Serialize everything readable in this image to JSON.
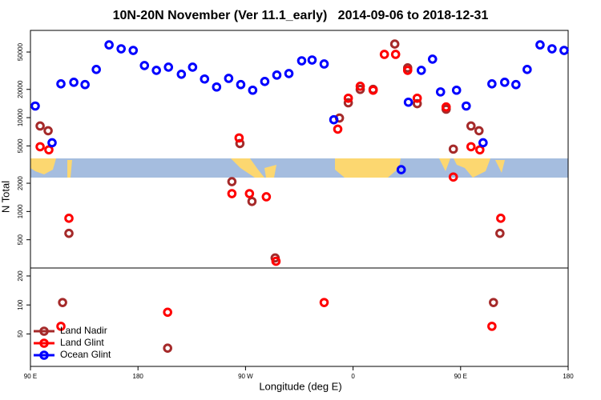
{
  "chart_data": [
    {
      "type": "scatter",
      "title": "10N-20N November (Ver 11.1_early)   2014-09-06 to 2018-12-31",
      "ylabel": "N Total",
      "ylog": true,
      "ylim": [
        250,
        85000
      ],
      "yticks": [
        500,
        1000,
        2000,
        5000,
        10000,
        20000,
        50000
      ],
      "xlim": [
        90,
        540
      ],
      "series": [
        {
          "color": "#a52a2a",
          "x": [
            98.1,
            104.8,
            122.2,
            258.6,
            265.3,
            275.4,
            294.8,
            348.6,
            356.0,
            366.0,
            376.8,
            394.9,
            405.7,
            413.7,
            437.9,
            443.9,
            458.7,
            465.4,
            482.9
          ],
          "values": [
            8150,
            7250,
            585,
            2080,
            5300,
            1280,
            320,
            9900,
            14400,
            20000,
            20000,
            60800,
            33900,
            14100,
            12300,
            4620,
            8150,
            7250,
            585
          ]
        },
        {
          "color": "#ff0000",
          "x": [
            98.1,
            105.4,
            122.2,
            258.6,
            264.6,
            273.3,
            287.4,
            295.5,
            347.2,
            356.0,
            366.0,
            376.8,
            386.2,
            395.6,
            405.7,
            413.7,
            437.9,
            443.9,
            458.7,
            466.1,
            483.6
          ],
          "values": [
            4900,
            4540,
            847,
            1550,
            6080,
            1550,
            1435,
            295,
            7540,
            16100,
            21600,
            19600,
            47200,
            47200,
            31900,
            16100,
            13000,
            2330,
            4900,
            4540,
            847
          ]
        },
        {
          "color": "#0000ff",
          "x": [
            94.0,
            108.1,
            115.5,
            126.3,
            135.7,
            145.1,
            155.8,
            165.9,
            176.0,
            185.4,
            195.4,
            205.5,
            216.3,
            225.7,
            235.7,
            245.8,
            255.9,
            266.0,
            276.0,
            286.1,
            296.2,
            306.3,
            317.0,
            325.7,
            335.8,
            343.9,
            400.3,
            406.3,
            417.1,
            426.5,
            433.2,
            446.6,
            454.7,
            468.8,
            476.2,
            486.9,
            496.3,
            505.7,
            516.5,
            526.5,
            536.6
          ],
          "values": [
            13300,
            5400,
            22900,
            23800,
            22500,
            32600,
            59600,
            54100,
            52000,
            35900,
            31900,
            34500,
            29000,
            34500,
            25800,
            21200,
            26200,
            22500,
            19600,
            24300,
            28400,
            29500,
            40300,
            41100,
            37300,
            9500,
            2790,
            14600,
            31900,
            42000,
            18800,
            19600,
            13300,
            5400,
            22900,
            23800,
            22500,
            32600,
            59600,
            54100,
            52000
          ]
        }
      ]
    },
    {
      "type": "scatter",
      "xlabel": "Longitude (deg E)",
      "ylog": true,
      "ylim": [
        23,
        242
      ],
      "yticks": [
        50,
        100,
        200
      ],
      "xlim": [
        90,
        540
      ],
      "xticks": [
        {
          "value": 90,
          "label": "90 E"
        },
        {
          "value": 180,
          "label": "180"
        },
        {
          "value": 270,
          "label": "90 W"
        },
        {
          "value": 360,
          "label": "0"
        },
        {
          "value": 450,
          "label": "90 E"
        },
        {
          "value": 540,
          "label": "180"
        }
      ],
      "legend": "bottomleft",
      "series": [
        {
          "name": "Land Nadir",
          "color": "#a52a2a",
          "x": [
            116.9,
            204.8,
            477.5
          ],
          "values": [
            106,
            35.6,
            106
          ]
        },
        {
          "name": "Land Glint",
          "color": "#ff0000",
          "x": [
            115.5,
            204.8,
            335.8,
            476.2
          ],
          "values": [
            60,
            84,
            106,
            60
          ]
        },
        {
          "name": "Ocean Glint",
          "color": "#0000ff",
          "x": [],
          "values": []
        }
      ]
    }
  ]
}
